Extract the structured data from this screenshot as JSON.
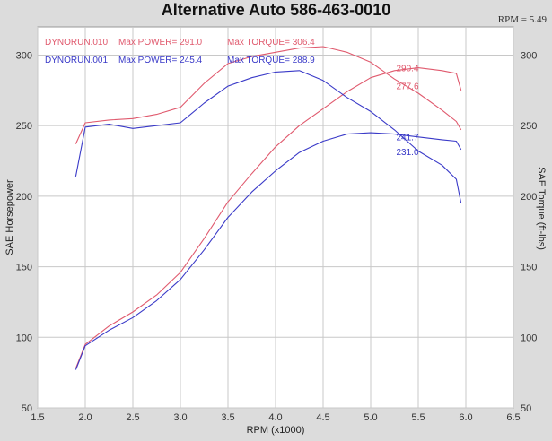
{
  "title": "Alternative Auto 586-463-0010",
  "rpm_readout": "RPM = 5.49",
  "colors": {
    "run010": "#e05a6e",
    "run001": "#3a3ac8",
    "grid": "#c8c8c8",
    "plot_bg": "#ffffff"
  },
  "legend": [
    {
      "run": "DYNORUN.010",
      "power": "Max POWER= 291.0",
      "torque": "Max TORQUE= 306.4",
      "color_key": "run010"
    },
    {
      "run": "DYNORUN.001",
      "power": "Max POWER= 245.4",
      "torque": "Max TORQUE= 288.9",
      "color_key": "run001"
    }
  ],
  "chart_data": {
    "type": "line",
    "xlabel": "RPM (x1000)",
    "ylabel": "SAE Horsepower",
    "y2label": "SAE Torque (ft-lbs)",
    "xlim": [
      1.5,
      6.5
    ],
    "ylim": [
      50,
      320
    ],
    "xticks": [
      "1.5",
      "2.0",
      "2.5",
      "3.0",
      "3.5",
      "4.0",
      "4.5",
      "5.0",
      "5.5",
      "6.0",
      "6.5"
    ],
    "yticks": [
      "50",
      "100",
      "150",
      "200",
      "250",
      "300"
    ],
    "y2ticks": [
      "50",
      "100",
      "150",
      "200",
      "250",
      "300"
    ],
    "grid": true,
    "series": [
      {
        "name": "DYNORUN.010",
        "quantity": "power",
        "color_key": "run010",
        "x": [
          1.9,
          2.0,
          2.25,
          2.5,
          2.75,
          3.0,
          3.25,
          3.5,
          3.75,
          4.0,
          4.25,
          4.5,
          4.75,
          5.0,
          5.25,
          5.5,
          5.75,
          5.9,
          5.95
        ],
        "y": [
          78,
          95,
          108,
          118,
          130,
          146,
          170,
          196,
          216,
          235,
          250,
          262,
          274,
          284,
          289,
          291,
          289,
          287,
          275
        ]
      },
      {
        "name": "DYNORUN.001",
        "quantity": "power",
        "color_key": "run001",
        "x": [
          1.9,
          2.0,
          2.25,
          2.5,
          2.75,
          3.0,
          3.25,
          3.5,
          3.75,
          4.0,
          4.25,
          4.5,
          4.75,
          5.0,
          5.25,
          5.5,
          5.75,
          5.9,
          5.95
        ],
        "y": [
          77,
          94,
          105,
          114,
          126,
          141,
          162,
          185,
          203,
          218,
          231,
          239,
          244,
          245,
          244,
          242,
          240,
          239,
          233
        ]
      },
      {
        "name": "DYNORUN.010",
        "quantity": "torque",
        "color_key": "run010",
        "x": [
          1.9,
          2.0,
          2.25,
          2.5,
          2.75,
          3.0,
          3.25,
          3.5,
          3.75,
          4.0,
          4.25,
          4.5,
          4.75,
          5.0,
          5.25,
          5.5,
          5.75,
          5.9,
          5.95
        ],
        "y": [
          237,
          252,
          254,
          255,
          258,
          263,
          280,
          294,
          299,
          302,
          305,
          306,
          302,
          295,
          283,
          273,
          261,
          253,
          247
        ]
      },
      {
        "name": "DYNORUN.001",
        "quantity": "torque",
        "color_key": "run001",
        "x": [
          1.9,
          2.0,
          2.25,
          2.5,
          2.75,
          3.0,
          3.25,
          3.5,
          3.75,
          4.0,
          4.25,
          4.5,
          4.75,
          5.0,
          5.25,
          5.5,
          5.75,
          5.9,
          5.95
        ],
        "y": [
          214,
          249,
          251,
          248,
          250,
          252,
          266,
          278,
          284,
          288,
          289,
          282,
          270,
          260,
          247,
          232,
          222,
          212,
          195
        ]
      }
    ],
    "annotations": [
      {
        "text": "290.4",
        "x": 5.25,
        "y": 290.4,
        "color_key": "run010"
      },
      {
        "text": "277.6",
        "x": 5.25,
        "y": 277.6,
        "color_key": "run010"
      },
      {
        "text": "241.7",
        "x": 5.25,
        "y": 241.7,
        "color_key": "run001"
      },
      {
        "text": "231.0",
        "x": 5.25,
        "y": 231.0,
        "color_key": "run001"
      }
    ]
  }
}
